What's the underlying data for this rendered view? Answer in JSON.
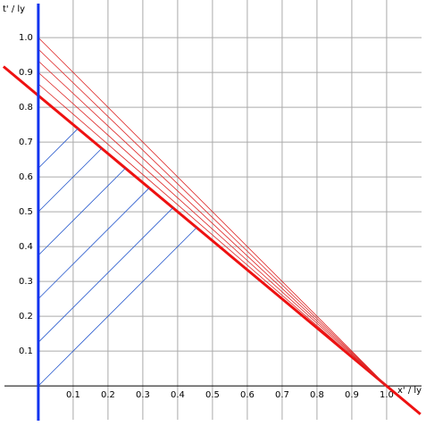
{
  "chart_data": {
    "type": "line",
    "x_label": "x' / ly",
    "y_label": "t' / ly",
    "xlim": [
      -0.11,
      1.113
    ],
    "ylim": [
      -0.115,
      1.108
    ],
    "xticks": [
      0.1,
      0.2,
      0.3,
      0.4,
      0.5,
      0.6,
      0.7,
      0.8,
      0.9,
      {
        "value": 1,
        "label": "1.0"
      }
    ],
    "yticks": [
      0.1,
      0.2,
      0.3,
      0.4,
      0.5,
      0.6,
      0.7,
      0.8,
      0.9,
      {
        "value": 1,
        "label": "1.0"
      }
    ],
    "grid": true,
    "series": [
      {
        "color": "#ee1111",
        "line_width": 3,
        "x": [
          -0.1,
          1.097
        ],
        "values": [
          0.917,
          -0.081
        ]
      },
      {
        "color": "#dd2222",
        "line_width": 0.8,
        "x": [
          0,
          1
        ],
        "values": [
          1.0,
          0
        ]
      },
      {
        "color": "#dd2222",
        "line_width": 0.8,
        "x": [
          0,
          1
        ],
        "values": [
          0.967,
          0
        ]
      },
      {
        "color": "#dd2222",
        "line_width": 0.8,
        "x": [
          0,
          1
        ],
        "values": [
          0.933,
          0
        ]
      },
      {
        "color": "#dd2222",
        "line_width": 0.8,
        "x": [
          0,
          1
        ],
        "values": [
          0.9,
          0
        ]
      },
      {
        "color": "#dd2222",
        "line_width": 0.8,
        "x": [
          0,
          1
        ],
        "values": [
          0.867,
          0
        ]
      },
      {
        "color": "#2255cc",
        "line_width": 0.8,
        "x": [
          0,
          0.4545
        ],
        "values": [
          0,
          0.4545
        ]
      },
      {
        "color": "#2255cc",
        "line_width": 0.8,
        "x": [
          0,
          0.3864
        ],
        "values": [
          0.125,
          0.5114
        ]
      },
      {
        "color": "#2255cc",
        "line_width": 0.8,
        "x": [
          0,
          0.3182
        ],
        "values": [
          0.25,
          0.5682
        ]
      },
      {
        "color": "#2255cc",
        "line_width": 0.8,
        "x": [
          0,
          0.25
        ],
        "values": [
          0.375,
          0.625
        ]
      },
      {
        "color": "#2255cc",
        "line_width": 0.8,
        "x": [
          0,
          0.1818
        ],
        "values": [
          0.5,
          0.6818
        ]
      },
      {
        "color": "#2255cc",
        "line_width": 0.8,
        "x": [
          0,
          0.1136
        ],
        "values": [
          0.625,
          0.7386
        ]
      }
    ]
  }
}
